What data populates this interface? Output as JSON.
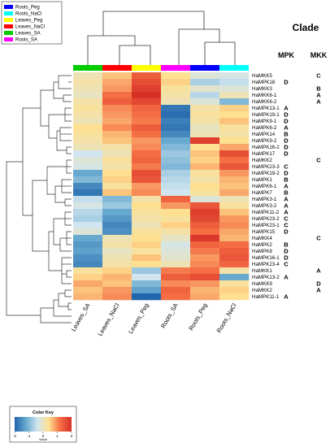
{
  "legend": {
    "items": [
      {
        "label": "Roots_Peg",
        "color": "#0000ff"
      },
      {
        "label": "Roots_NaCl",
        "color": "#00ffff"
      },
      {
        "label": "Leaves_Peg",
        "color": "#ffff00"
      },
      {
        "label": "Leaves_NaCl",
        "color": "#ff0000"
      },
      {
        "label": "Leaves_SA",
        "color": "#00cc00"
      },
      {
        "label": "Roots_SA",
        "color": "#ff00ff"
      }
    ]
  },
  "clade": {
    "title": "Clade",
    "mpk_header": "MPK",
    "mkk_header": "MKK"
  },
  "color_key": {
    "title": "Color Key",
    "ticks": [
      "-2",
      "-1",
      "0",
      "1",
      "2"
    ],
    "value_label": "Value",
    "colors": [
      "#2166ac",
      "#67a9cf",
      "#d1e5f0",
      "#fee090",
      "#f46d43",
      "#d73027"
    ]
  },
  "chart_data": {
    "type": "heatmap",
    "columns": [
      "Leaves_SA",
      "Leaves_NaCl",
      "Leaves_Peg",
      "Roots_SA",
      "Roots_Peg",
      "Roots_NaCl"
    ],
    "column_colors": [
      "#00cc00",
      "#ff0000",
      "#ffff00",
      "#ff00ff",
      "#0000ff",
      "#00ffff"
    ],
    "value_range": [
      -2,
      2
    ],
    "rows": [
      {
        "gene": "HaMKK5",
        "mpk": "",
        "mkk": "C",
        "values": [
          0.1,
          0.6,
          1.4,
          0.4,
          -0.2,
          -0.3
        ]
      },
      {
        "gene": "HaMPK18",
        "mpk": "D",
        "mkk": "",
        "values": [
          0.2,
          0.8,
          1.6,
          0.5,
          -0.7,
          -0.5
        ]
      },
      {
        "gene": "HaMKK3",
        "mpk": "",
        "mkk": "B",
        "values": [
          0.1,
          0.9,
          1.8,
          0.3,
          -0.1,
          -0.2
        ]
      },
      {
        "gene": "HaMKK6-1",
        "mpk": "",
        "mkk": "A",
        "values": [
          0.0,
          1.2,
          2.0,
          0.2,
          -0.6,
          0.1
        ]
      },
      {
        "gene": "HaMKK6-2",
        "mpk": "",
        "mkk": "A",
        "values": [
          0.2,
          1.4,
          1.7,
          0.1,
          -0.2,
          -1.0
        ]
      },
      {
        "gene": "HaMPK13-1",
        "mpk": "A",
        "mkk": "",
        "values": [
          0.3,
          1.0,
          1.3,
          -1.8,
          0.2,
          0.5
        ]
      },
      {
        "gene": "HaMPK19-1",
        "mpk": "D",
        "mkk": "",
        "values": [
          0.2,
          0.9,
          1.2,
          -1.9,
          0.3,
          0.4
        ]
      },
      {
        "gene": "HaMPK9-1",
        "mpk": "D",
        "mkk": "",
        "values": [
          0.1,
          0.8,
          1.1,
          -1.7,
          0.2,
          0.6
        ]
      },
      {
        "gene": "HaMPK6-2",
        "mpk": "A",
        "mkk": "",
        "values": [
          0.4,
          1.0,
          1.4,
          -1.8,
          0.0,
          0.3
        ]
      },
      {
        "gene": "HaMPK14",
        "mpk": "B",
        "mkk": "",
        "values": [
          0.3,
          0.7,
          1.2,
          -1.6,
          0.1,
          0.2
        ]
      },
      {
        "gene": "HaMPK9-2",
        "mpk": "D",
        "mkk": "",
        "values": [
          0.2,
          0.6,
          0.9,
          -1.2,
          1.8,
          0.4
        ]
      },
      {
        "gene": "HaMPK16-2",
        "mpk": "D",
        "mkk": "",
        "values": [
          0.1,
          0.2,
          1.0,
          -1.0,
          0.4,
          0.8
        ]
      },
      {
        "gene": "HaMPK17",
        "mpk": "D",
        "mkk": "",
        "values": [
          -0.4,
          0.1,
          1.2,
          -0.8,
          0.6,
          1.6
        ]
      },
      {
        "gene": "HaMKK2",
        "mpk": "",
        "mkk": "C",
        "values": [
          -0.2,
          0.3,
          1.3,
          -0.9,
          0.5,
          1.2
        ]
      },
      {
        "gene": "HaMPK23-3",
        "mpk": "C",
        "mkk": "",
        "values": [
          -0.3,
          0.2,
          1.1,
          -1.0,
          0.7,
          1.5
        ]
      },
      {
        "gene": "HaMPK19-2",
        "mpk": "D",
        "mkk": "",
        "values": [
          -1.2,
          0.4,
          1.6,
          -0.7,
          0.3,
          0.9
        ]
      },
      {
        "gene": "HaMPK1",
        "mpk": "B",
        "mkk": "",
        "values": [
          -1.0,
          0.5,
          1.5,
          -0.6,
          0.2,
          0.7
        ]
      },
      {
        "gene": "HaMPK6-1",
        "mpk": "A",
        "mkk": "",
        "values": [
          -1.6,
          0.3,
          0.9,
          -0.5,
          0.4,
          0.6
        ]
      },
      {
        "gene": "HaMPK7",
        "mpk": "B",
        "mkk": "",
        "values": [
          -1.8,
          0.6,
          1.0,
          -0.4,
          0.3,
          0.8
        ]
      },
      {
        "gene": "HaMPK3-1",
        "mpk": "A",
        "mkk": "",
        "values": [
          -0.5,
          -1.0,
          0.2,
          1.3,
          -0.2,
          0.1
        ]
      },
      {
        "gene": "HaMPK3-2",
        "mpk": "A",
        "mkk": "",
        "values": [
          -0.3,
          -0.8,
          0.4,
          0.9,
          1.5,
          0.3
        ]
      },
      {
        "gene": "HaMPK11-2",
        "mpk": "A",
        "mkk": "",
        "values": [
          -0.6,
          -1.2,
          0.3,
          0.4,
          1.8,
          0.6
        ]
      },
      {
        "gene": "HaMPK23-2",
        "mpk": "C",
        "mkk": "",
        "values": [
          -0.7,
          -1.4,
          0.2,
          0.3,
          1.7,
          0.9
        ]
      },
      {
        "gene": "HaMPK23-1",
        "mpk": "C",
        "mkk": "",
        "values": [
          -0.4,
          -1.6,
          0.1,
          0.5,
          1.4,
          1.0
        ]
      },
      {
        "gene": "HaMPK15",
        "mpk": "D",
        "mkk": "",
        "values": [
          -0.2,
          -1.5,
          0.3,
          0.2,
          1.2,
          0.8
        ]
      },
      {
        "gene": "HaMKK4",
        "mpk": "",
        "mkk": "C",
        "values": [
          -1.2,
          0.1,
          0.4,
          0.0,
          1.9,
          0.7
        ]
      },
      {
        "gene": "HaMPK2",
        "mpk": "B",
        "mkk": "",
        "values": [
          -1.4,
          0.2,
          0.5,
          -0.3,
          1.3,
          1.2
        ]
      },
      {
        "gene": "HaMPK8",
        "mpk": "D",
        "mkk": "",
        "values": [
          -1.3,
          0.0,
          0.3,
          -0.2,
          1.1,
          1.4
        ]
      },
      {
        "gene": "HaMPK16-1",
        "mpk": "D",
        "mkk": "",
        "values": [
          -1.5,
          0.1,
          0.6,
          -0.1,
          0.9,
          1.5
        ]
      },
      {
        "gene": "HaMPK23-4",
        "mpk": "C",
        "mkk": "",
        "values": [
          -1.6,
          0.2,
          0.4,
          0.1,
          1.0,
          1.3
        ]
      },
      {
        "gene": "HaMKK1",
        "mpk": "",
        "mkk": "A",
        "values": [
          0.3,
          0.5,
          -0.8,
          1.1,
          1.2,
          0.2
        ]
      },
      {
        "gene": "HaMPK13-2",
        "mpk": "A",
        "mkk": "",
        "values": [
          0.5,
          0.7,
          -0.4,
          1.4,
          1.6,
          -1.2
        ]
      },
      {
        "gene": "HaMKK9",
        "mpk": "",
        "mkk": "D",
        "values": [
          0.8,
          0.6,
          -1.0,
          1.0,
          0.9,
          0.3
        ]
      },
      {
        "gene": "HaMKK2",
        "mpk": "",
        "mkk": "A",
        "values": [
          0.6,
          0.9,
          -1.3,
          1.3,
          0.7,
          0.5
        ]
      },
      {
        "gene": "HaMPK11-1",
        "mpk": "A",
        "mkk": "",
        "values": [
          0.7,
          1.0,
          -2.0,
          1.2,
          0.8,
          0.4
        ]
      }
    ]
  }
}
